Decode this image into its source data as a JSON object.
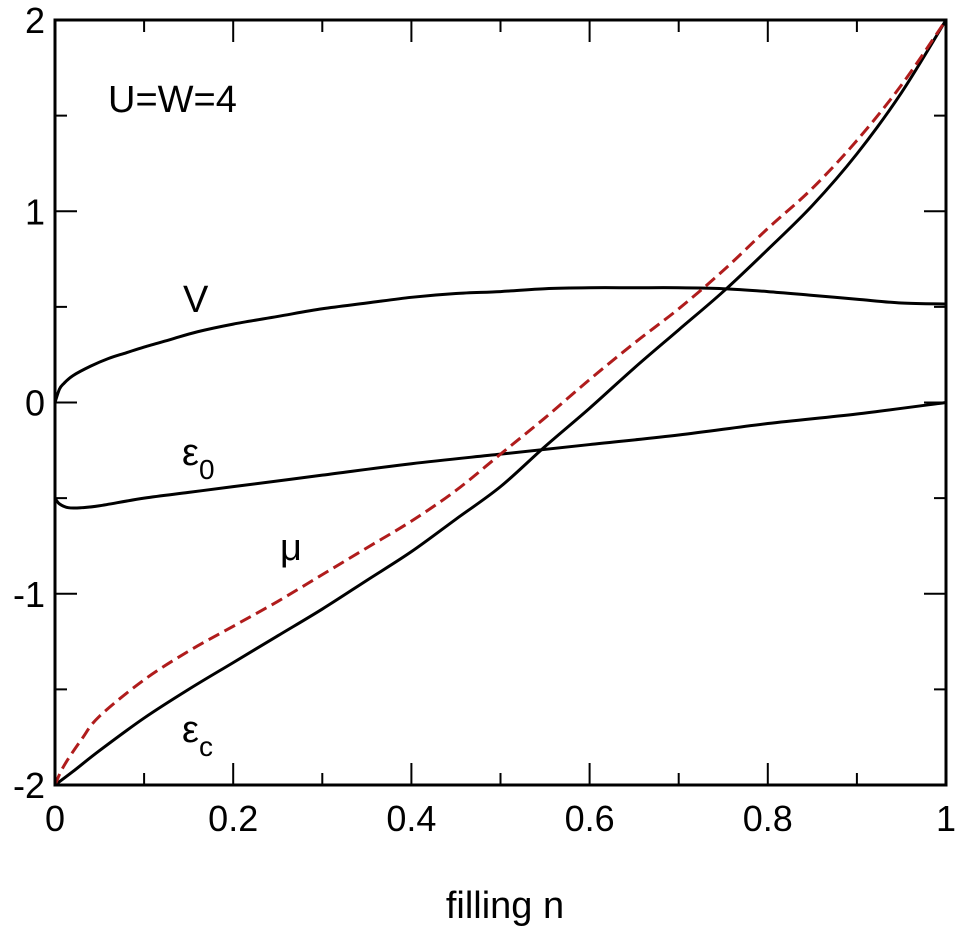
{
  "chart_data": {
    "type": "line",
    "xlabel": "filling  n",
    "ylabel": "",
    "xlim": [
      0,
      1
    ],
    "ylim": [
      -2,
      2
    ],
    "x_ticks": [
      "0",
      "0.2",
      "0.4",
      "0.6",
      "0.8",
      "1"
    ],
    "y_ticks": [
      "-2",
      "-1",
      "0",
      "1",
      "2"
    ],
    "annotations": {
      "params": "U=W=4",
      "V": "V",
      "eps0_main": "ε",
      "eps0_sub": "0",
      "mu": "μ",
      "epsc_main": "ε",
      "epsc_sub": "c"
    },
    "series": [
      {
        "label_key": "V",
        "color": "#000000",
        "dash": "solid",
        "points": [
          [
            0,
            0.0
          ],
          [
            0.005,
            0.07
          ],
          [
            0.01,
            0.1
          ],
          [
            0.02,
            0.14
          ],
          [
            0.04,
            0.19
          ],
          [
            0.06,
            0.23
          ],
          [
            0.08,
            0.26
          ],
          [
            0.1,
            0.29
          ],
          [
            0.13,
            0.33
          ],
          [
            0.16,
            0.37
          ],
          [
            0.2,
            0.41
          ],
          [
            0.25,
            0.45
          ],
          [
            0.3,
            0.49
          ],
          [
            0.35,
            0.52
          ],
          [
            0.4,
            0.55
          ],
          [
            0.45,
            0.57
          ],
          [
            0.5,
            0.58
          ],
          [
            0.55,
            0.595
          ],
          [
            0.6,
            0.6
          ],
          [
            0.65,
            0.6
          ],
          [
            0.7,
            0.6
          ],
          [
            0.75,
            0.595
          ],
          [
            0.8,
            0.58
          ],
          [
            0.85,
            0.56
          ],
          [
            0.9,
            0.54
          ],
          [
            0.95,
            0.52
          ],
          [
            1.0,
            0.515
          ]
        ]
      },
      {
        "label_key": "eps0",
        "color": "#000000",
        "dash": "solid",
        "points": [
          [
            0,
            -0.5
          ],
          [
            0.005,
            -0.53
          ],
          [
            0.015,
            -0.55
          ],
          [
            0.03,
            -0.55
          ],
          [
            0.05,
            -0.54
          ],
          [
            0.1,
            -0.5
          ],
          [
            0.15,
            -0.47
          ],
          [
            0.2,
            -0.44
          ],
          [
            0.3,
            -0.38
          ],
          [
            0.4,
            -0.32
          ],
          [
            0.5,
            -0.27
          ],
          [
            0.6,
            -0.22
          ],
          [
            0.7,
            -0.17
          ],
          [
            0.8,
            -0.11
          ],
          [
            0.9,
            -0.06
          ],
          [
            1.0,
            0.0
          ]
        ]
      },
      {
        "label_key": "epsc",
        "color": "#000000",
        "dash": "solid",
        "points": [
          [
            0,
            -2.0
          ],
          [
            0.02,
            -1.93
          ],
          [
            0.05,
            -1.82
          ],
          [
            0.1,
            -1.65
          ],
          [
            0.15,
            -1.5
          ],
          [
            0.2,
            -1.36
          ],
          [
            0.25,
            -1.22
          ],
          [
            0.3,
            -1.08
          ],
          [
            0.35,
            -0.93
          ],
          [
            0.4,
            -0.78
          ],
          [
            0.45,
            -0.61
          ],
          [
            0.5,
            -0.44
          ],
          [
            0.55,
            -0.23
          ],
          [
            0.6,
            -0.03
          ],
          [
            0.65,
            0.18
          ],
          [
            0.7,
            0.38
          ],
          [
            0.75,
            0.58
          ],
          [
            0.8,
            0.8
          ],
          [
            0.85,
            1.03
          ],
          [
            0.9,
            1.3
          ],
          [
            0.95,
            1.62
          ],
          [
            1.0,
            2.0
          ]
        ]
      },
      {
        "label_key": "mu",
        "color": "#b01c1c",
        "dash": "dashed",
        "points": [
          [
            0,
            -2.0
          ],
          [
            0.01,
            -1.9
          ],
          [
            0.03,
            -1.76
          ],
          [
            0.05,
            -1.64
          ],
          [
            0.1,
            -1.45
          ],
          [
            0.15,
            -1.3
          ],
          [
            0.2,
            -1.17
          ],
          [
            0.25,
            -1.04
          ],
          [
            0.3,
            -0.9
          ],
          [
            0.35,
            -0.76
          ],
          [
            0.4,
            -0.62
          ],
          [
            0.45,
            -0.46
          ],
          [
            0.5,
            -0.27
          ],
          [
            0.55,
            -0.08
          ],
          [
            0.6,
            0.12
          ],
          [
            0.65,
            0.31
          ],
          [
            0.7,
            0.49
          ],
          [
            0.75,
            0.69
          ],
          [
            0.8,
            0.91
          ],
          [
            0.85,
            1.12
          ],
          [
            0.9,
            1.37
          ],
          [
            0.95,
            1.66
          ],
          [
            1.0,
            2.0
          ]
        ]
      }
    ]
  }
}
